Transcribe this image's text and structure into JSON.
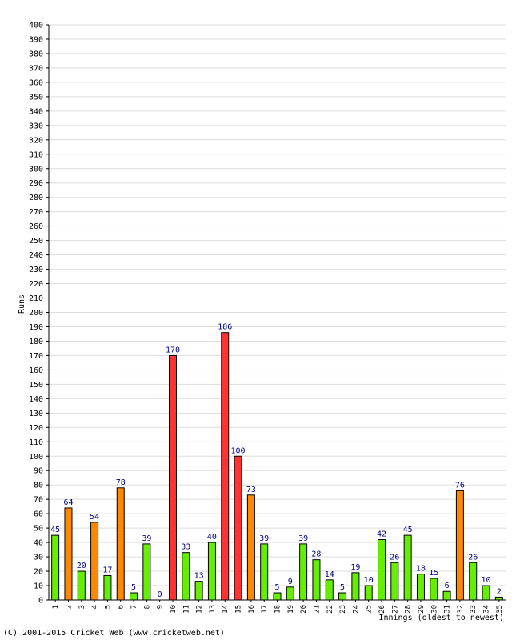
{
  "chart_data": {
    "type": "bar",
    "xlabel": "Innings (oldest to newest)",
    "ylabel": "Runs",
    "ylim": [
      0,
      400
    ],
    "ytick_step": 10,
    "grid": true,
    "categories": [
      "1",
      "2",
      "3",
      "4",
      "5",
      "6",
      "7",
      "8",
      "9",
      "10",
      "11",
      "12",
      "13",
      "14",
      "15",
      "16",
      "17",
      "18",
      "19",
      "20",
      "21",
      "22",
      "23",
      "24",
      "25",
      "26",
      "27",
      "28",
      "29",
      "30",
      "31",
      "32",
      "33",
      "34",
      "35"
    ],
    "values": [
      45,
      64,
      20,
      54,
      17,
      78,
      5,
      39,
      0,
      170,
      33,
      13,
      40,
      186,
      100,
      73,
      39,
      5,
      9,
      39,
      28,
      14,
      5,
      19,
      10,
      42,
      26,
      45,
      18,
      15,
      6,
      76,
      26,
      10,
      2
    ],
    "colors": {
      "below_50": "#66ee00",
      "fifty": "#ff8800",
      "hundred": "#ff3333",
      "value_label": "#000080"
    }
  },
  "footer": {
    "copyright": "(C) 2001-2015 Cricket Web (www.cricketweb.net)"
  }
}
